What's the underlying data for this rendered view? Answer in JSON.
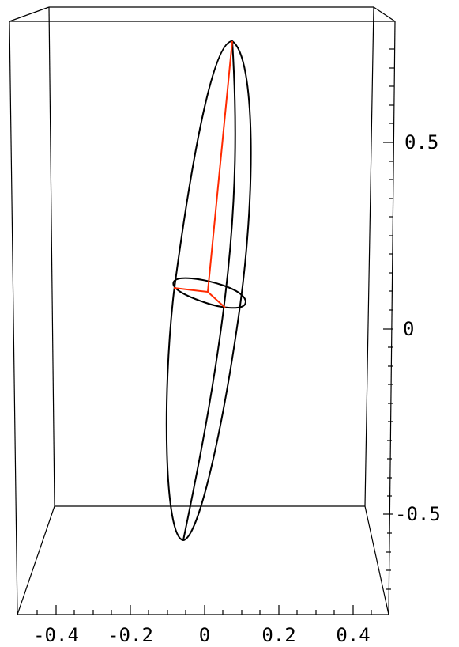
{
  "chart_data": {
    "type": "3d-box-diagram",
    "x_axis": {
      "ticks": [
        "-0.4",
        "-0.2",
        "0",
        "0.2",
        "0.4"
      ]
    },
    "z_axis": {
      "ticks": [
        "0.5",
        "0",
        "-0.5"
      ]
    },
    "grid": false,
    "elements": [
      "ellipsoid-outline",
      "principal-axes"
    ],
    "colors": {
      "box": "#000000",
      "ellipsoid": "#000000",
      "principal_axes": "#ff2a00"
    }
  }
}
